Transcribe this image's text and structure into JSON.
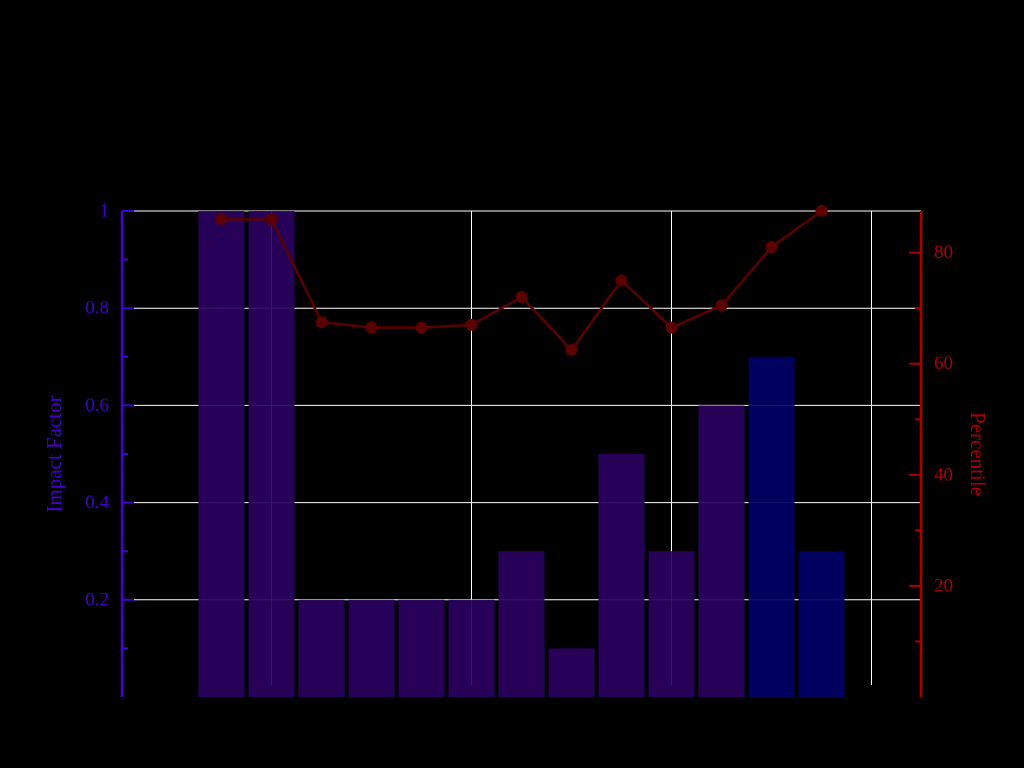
{
  "chart_data": {
    "type": "bar",
    "title": "",
    "categories": [
      "",
      "",
      "",
      "",
      "",
      "",
      "",
      "",
      "",
      "",
      "",
      "",
      ""
    ],
    "series": [
      {
        "axis": "left",
        "kind": "bar",
        "values": [
          1.0,
          1.0,
          0.2,
          0.2,
          0.2,
          0.2,
          0.3,
          0.1,
          0.5,
          0.3,
          0.6,
          0.7,
          0.3
        ],
        "colors": [
          "#2a0060",
          "#2a0060",
          "#2a0060",
          "#2a0060",
          "#2a0060",
          "#2a0060",
          "#2a0060",
          "#2a0060",
          "#2a0060",
          "#2a0060",
          "#2a0060",
          "#000066",
          "#000066"
        ]
      },
      {
        "axis": "right",
        "kind": "line",
        "values": [
          86,
          86,
          67.5,
          66.5,
          66.5,
          67,
          72,
          62.5,
          75,
          66.5,
          70.5,
          81,
          87.5
        ],
        "color": "#5a0000"
      }
    ],
    "y_left": {
      "label": "Impact Factor",
      "ticks": [
        0.2,
        0.4,
        0.6,
        0.8,
        1
      ],
      "tick_labels": [
        "0.2",
        "0.4",
        "0.6",
        "0.8",
        "1"
      ],
      "range": [
        0,
        1
      ],
      "color": "#4400cc"
    },
    "y_right": {
      "label": "Percentile",
      "ticks": [
        20,
        40,
        60,
        80
      ],
      "tick_labels": [
        "20",
        "40",
        "60",
        "80"
      ],
      "range": [
        0,
        87.5
      ],
      "color": "#aa0000"
    },
    "grid": true,
    "background": "#000000",
    "grid_color": "#ffffff"
  }
}
